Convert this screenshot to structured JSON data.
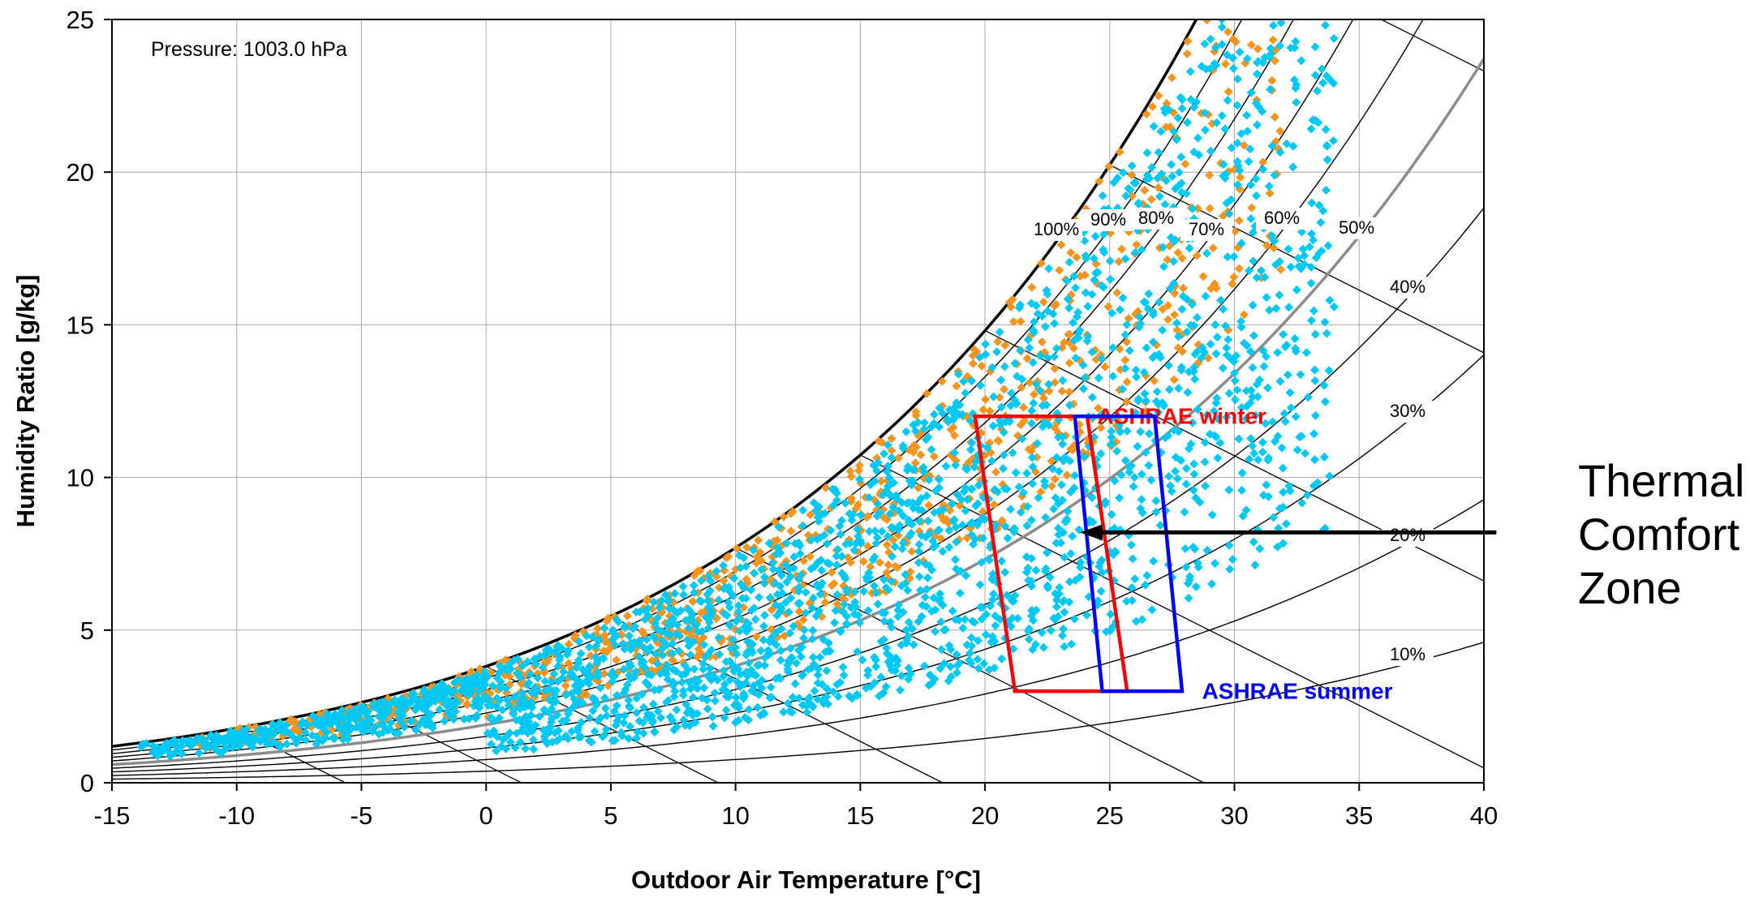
{
  "chart_data": {
    "type": "scatter",
    "title": "",
    "annotation_pressure": "Pressure: 1003.0 hPa",
    "xlabel": "Outdoor Air Temperature  [°C]",
    "ylabel": "Humidity Ratio  [g/kg]",
    "xlim": [
      -15,
      40
    ],
    "ylim": [
      0,
      25
    ],
    "xticks": [
      -15,
      -10,
      -5,
      0,
      5,
      10,
      15,
      20,
      25,
      30,
      35,
      40
    ],
    "yticks": [
      0,
      5,
      10,
      15,
      20,
      25
    ],
    "xtick_labels": [
      "-15",
      "-10",
      "-5",
      "0",
      "5",
      "10",
      "15",
      "20",
      "25",
      "30",
      "35",
      "40"
    ],
    "ytick_labels": [
      "0",
      "5",
      "10",
      "15",
      "20",
      "25"
    ],
    "grid": true,
    "pressure_hPa": 1003.0,
    "relative_humidity_curves": [
      {
        "rh": 100,
        "label": "100%"
      },
      {
        "rh": 90,
        "label": "90%"
      },
      {
        "rh": 80,
        "label": "80%"
      },
      {
        "rh": 70,
        "label": "70%"
      },
      {
        "rh": 60,
        "label": "60%"
      },
      {
        "rh": 50,
        "label": "50%"
      },
      {
        "rh": 40,
        "label": "40%"
      },
      {
        "rh": 30,
        "label": "30%"
      },
      {
        "rh": 20,
        "label": "20%"
      },
      {
        "rh": 10,
        "label": "10%"
      }
    ],
    "series": [
      {
        "color": "#f7941d",
        "marker": "diamond",
        "x_range": [
          -12,
          32
        ],
        "approx_points": 900
      },
      {
        "color": "#00c8f5",
        "marker": "diamond",
        "x_range": [
          -14,
          34
        ],
        "approx_points": 2400
      }
    ],
    "comfort_zones": [
      {
        "name": "ASHRAE winter",
        "color": "#ff0000",
        "polygon": [
          [
            19.6,
            12.0
          ],
          [
            24.1,
            12.0
          ],
          [
            25.7,
            3.0
          ],
          [
            21.2,
            3.0
          ]
        ]
      },
      {
        "name": "ASHRAE summer",
        "color": "#0000ff",
        "polygon": [
          [
            23.6,
            12.0
          ],
          [
            26.8,
            12.0
          ],
          [
            27.9,
            3.0
          ],
          [
            24.7,
            3.0
          ]
        ]
      }
    ]
  },
  "callout": {
    "lines": [
      "Thermal",
      "Comfort",
      "Zone"
    ],
    "arrow_from": [
      40.5,
      8.2
    ],
    "arrow_to": [
      23.8,
      8.2
    ]
  },
  "colors": {
    "grid": "#a8a8a8",
    "saturation_curve": "#000000",
    "rh_curves": "#000000",
    "rh_highlight": "#8c8c8c",
    "wetbulb_lines": "#000000"
  }
}
